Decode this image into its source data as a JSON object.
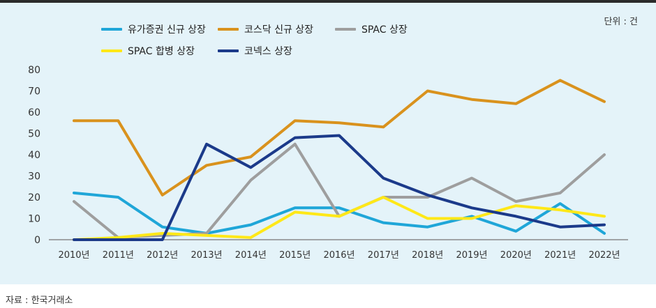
{
  "unit_label": "단위 : 건",
  "source_label": "자료 : 한국거래소",
  "chart_data": {
    "type": "line",
    "x": [
      "2010년",
      "2011년",
      "2012년",
      "2013년",
      "2014년",
      "2015년",
      "2016년",
      "2017년",
      "2018년",
      "2019년",
      "2020년",
      "2021년",
      "2022년"
    ],
    "ylim": [
      0,
      80
    ],
    "yticks": [
      0,
      10,
      20,
      30,
      40,
      50,
      60,
      70,
      80
    ],
    "grid": false,
    "legend_position": "top-center",
    "series": [
      {
        "name": "유가증권 신규 상장",
        "color": "#1fa6d8",
        "values": [
          22,
          20,
          6,
          3,
          7,
          15,
          15,
          8,
          6,
          11,
          4,
          17,
          3
        ]
      },
      {
        "name": "코스닥 신규 상장",
        "color": "#d9921d",
        "values": [
          56,
          56,
          21,
          35,
          39,
          56,
          55,
          53,
          70,
          66,
          64,
          75,
          65
        ]
      },
      {
        "name": "SPAC 상장",
        "color": "#9e9e9e",
        "values": [
          18,
          1,
          2,
          3,
          28,
          45,
          11,
          20,
          20,
          29,
          18,
          22,
          40
        ]
      },
      {
        "name": "SPAC 합병 상장",
        "color": "#ffe818",
        "values": [
          0,
          1,
          3,
          2,
          1,
          13,
          11,
          20,
          10,
          10,
          16,
          14,
          11
        ]
      },
      {
        "name": "코넥스 상장",
        "color": "#1b3a8a",
        "values": [
          0,
          0,
          0,
          45,
          34,
          48,
          49,
          29,
          21,
          15,
          11,
          6,
          7
        ]
      }
    ]
  }
}
